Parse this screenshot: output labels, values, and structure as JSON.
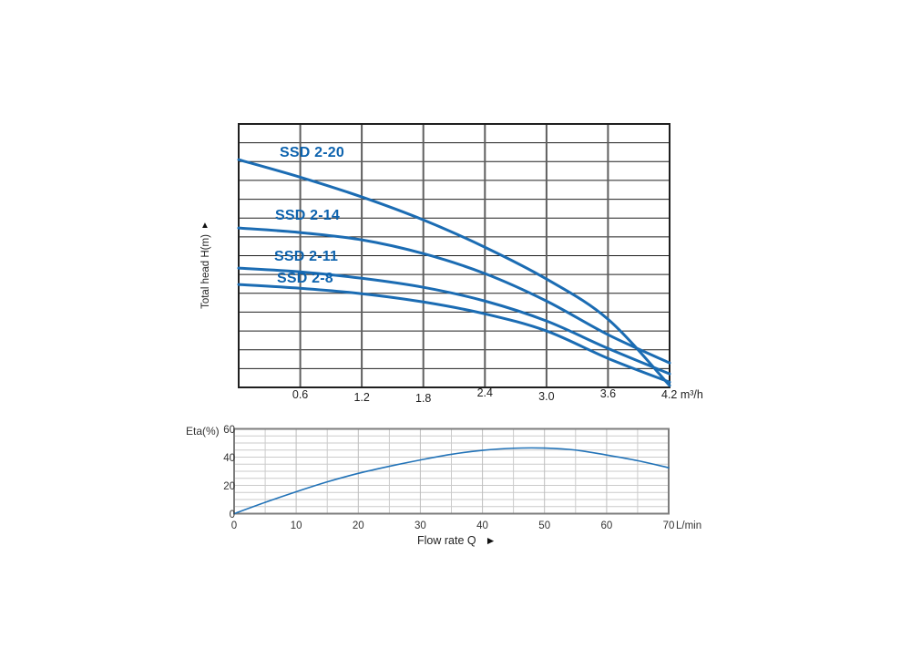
{
  "page": {
    "background": "#ffffff"
  },
  "colors": {
    "curve_blue": "#1b6cb3",
    "bottom_curve_blue": "#2273b8",
    "series_label_blue": "#0d63ae",
    "grid_dark": "#1f1f1f",
    "grid_vertical_gray": "#5f5f5f",
    "minor_grid_gray": "#cbcbcb",
    "bottom_border_gray": "#7d7d7d",
    "text_dark": "#262626"
  },
  "top_chart": {
    "y_axis_title": "Total head H(m)",
    "up_arrow": "▲",
    "x_unit": "m³/h"
  },
  "bottom_chart": {
    "y_axis_label": "Eta(%)",
    "x_unit_label": "L/min",
    "x_axis_title": "Flow rate Q",
    "right_arrow": "►"
  },
  "chart_data": [
    {
      "type": "line",
      "title": "Pump head curves",
      "xlabel": "m³/h",
      "ylabel": "Total head H(m)",
      "x_range": [
        0,
        4.2
      ],
      "x_tick_labels": [
        "0.6",
        "1.2",
        "1.8",
        "2.4",
        "3.0",
        "3.6",
        "4.2 m³/h"
      ],
      "x_tick_values": [
        0.6,
        1.2,
        1.8,
        2.4,
        3.0,
        3.6,
        4.2
      ],
      "y_axis_note": "no numeric labels; 14 equal grid divisions (values in grid units from chart bottom)",
      "grid": "on",
      "grid_divisions": {
        "columns": 7,
        "rows": 14
      },
      "legend_position": "labels drawn on chart at left of each curve",
      "series": [
        {
          "name": "SSD 2-20",
          "x": [
            0,
            0.6,
            1.2,
            1.8,
            2.4,
            3.0,
            3.6,
            4.2
          ],
          "y_grid_units": [
            12.1,
            11.17,
            10.12,
            8.9,
            7.45,
            5.76,
            3.62,
            0.1
          ]
        },
        {
          "name": "SSD 2-14",
          "x": [
            0,
            0.6,
            1.2,
            1.8,
            2.4,
            3.0,
            3.6,
            4.2
          ],
          "y_grid_units": [
            8.47,
            8.23,
            7.84,
            7.11,
            6.05,
            4.59,
            2.8,
            1.3
          ]
        },
        {
          "name": "SSD 2-11",
          "x": [
            0,
            0.6,
            1.2,
            1.8,
            2.4,
            3.0,
            3.6,
            4.2
          ],
          "y_grid_units": [
            6.34,
            6.14,
            5.8,
            5.32,
            4.59,
            3.53,
            2.07,
            0.72
          ]
        },
        {
          "name": "SSD 2-8",
          "x": [
            0,
            0.6,
            1.2,
            1.8,
            2.4,
            3.0,
            3.6,
            4.2
          ],
          "y_grid_units": [
            5.47,
            5.27,
            4.98,
            4.54,
            3.91,
            3.0,
            1.54,
            0.28
          ]
        }
      ]
    },
    {
      "type": "line",
      "title": "Efficiency curve",
      "xlabel": "Flow rate Q (L/min)",
      "ylabel": "Eta(%)",
      "xlim": [
        0,
        70
      ],
      "ylim": [
        0,
        60
      ],
      "x_ticks": [
        0,
        10,
        20,
        30,
        40,
        50,
        60,
        70
      ],
      "y_ticks": [
        0,
        20,
        40,
        60
      ],
      "grid": "on (minor gridlines every 5 units both axes)",
      "series": [
        {
          "name": "Eta(%)",
          "x": [
            0,
            5,
            10,
            15,
            20,
            25,
            30,
            35,
            40,
            45,
            50,
            55,
            60,
            65,
            70
          ],
          "y": [
            0,
            8,
            15.5,
            22.5,
            28.5,
            33.5,
            38,
            42,
            44.8,
            46.3,
            46.4,
            45,
            41.5,
            37.5,
            32.5
          ]
        }
      ]
    }
  ]
}
